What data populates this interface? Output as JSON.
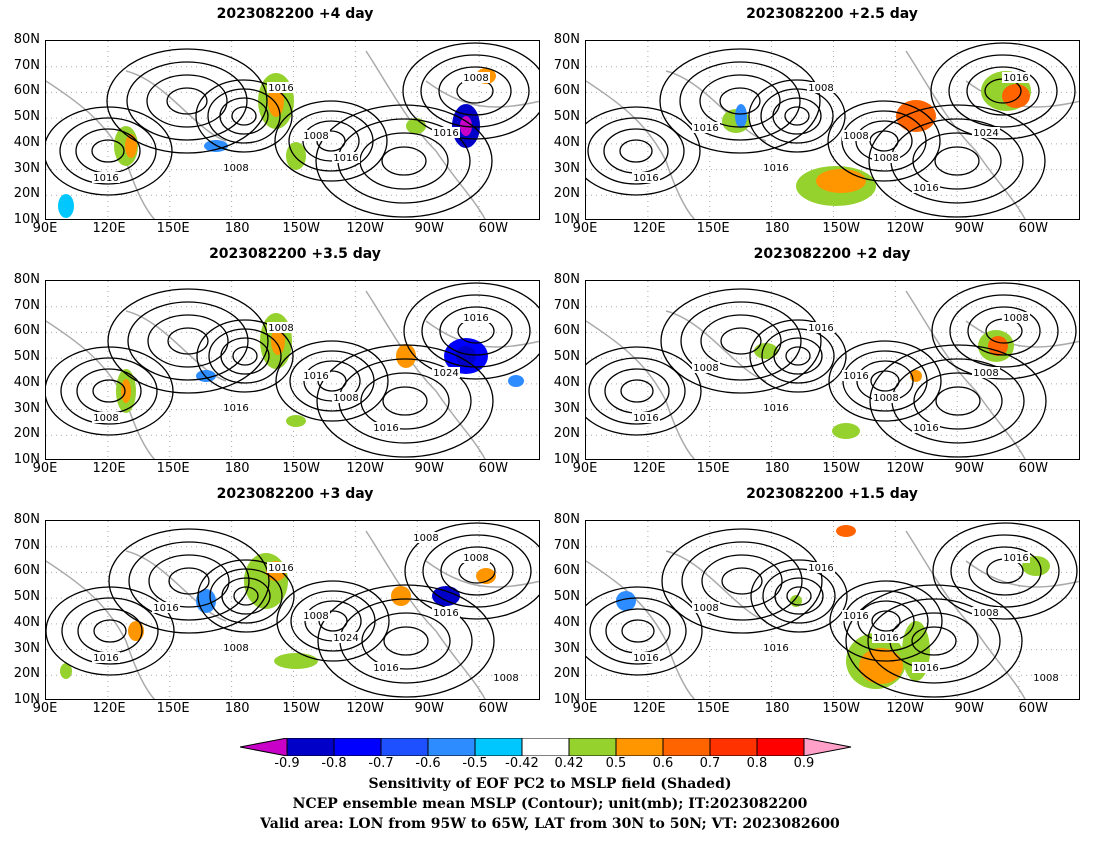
{
  "panels": [
    {
      "title": "2023082200  +4 day",
      "contours": [
        "1016",
        "1008",
        "1016",
        "1008",
        "1016",
        "1008",
        "1016"
      ]
    },
    {
      "title": "2023082200  +2.5 day",
      "contours": [
        "1016",
        "1016",
        "1008",
        "1008",
        "1024",
        "1016",
        "1008",
        "1016",
        "1016"
      ]
    },
    {
      "title": "2023082200  +3.5 day",
      "contours": [
        "1008",
        "1016",
        "1008",
        "1016",
        "1024",
        "1016",
        "1008",
        "1016"
      ]
    },
    {
      "title": "2023082200  +2 day",
      "contours": [
        "1016",
        "1016",
        "1016",
        "1016",
        "1008",
        "1008",
        "1008",
        "1016",
        "1008"
      ]
    },
    {
      "title": "2023082200  +3 day",
      "contours": [
        "1016",
        "1008",
        "1016",
        "1008",
        "1016",
        "1008",
        "1024",
        "1016",
        "1016",
        "1008",
        "1008"
      ]
    },
    {
      "title": "2023082200  +1.5 day",
      "contours": [
        "1016",
        "1016",
        "1016",
        "1016",
        "1008",
        "1016",
        "1016",
        "1016",
        "1008",
        "1008"
      ]
    }
  ],
  "y_ticks": [
    "80N",
    "70N",
    "60N",
    "50N",
    "40N",
    "30N",
    "20N",
    "10N"
  ],
  "x_ticks": [
    "90E",
    "120E",
    "150E",
    "180",
    "150W",
    "120W",
    "90W",
    "60W"
  ],
  "colorbar": {
    "labels": [
      "-0.9",
      "-0.8",
      "-0.7",
      "-0.6",
      "-0.5",
      "-0.42",
      "0.42",
      "0.5",
      "0.6",
      "0.7",
      "0.8",
      "0.9"
    ],
    "colors": [
      "#c800c8",
      "#0000c8",
      "#0000ff",
      "#1e50ff",
      "#2d8cff",
      "#00c8ff",
      "#ffffff",
      "#96d22d",
      "#ff9600",
      "#ff6400",
      "#ff3200",
      "#ff0000",
      "#ffa0c8"
    ]
  },
  "caption": {
    "line1": "Sensitivity of EOF PC2 to MSLP field (Shaded)",
    "line2": "NCEP ensemble mean MSLP (Contour); unit(mb); IT:2023082200",
    "line3": "Valid area: LON from 95W to 65W, LAT from 30N to 50N; VT: 2023082600"
  }
}
